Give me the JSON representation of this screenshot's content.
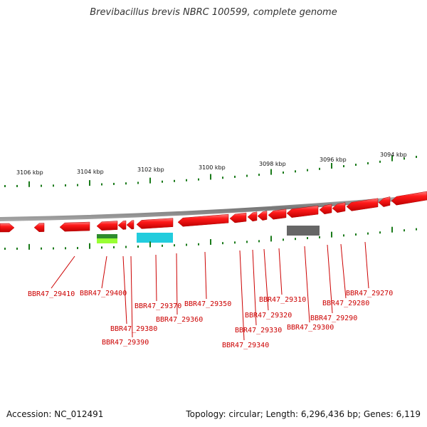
{
  "title": "Brevibacillus brevis NBRC 100599, complete genome",
  "footer": {
    "accession": "Accession: NC_012491",
    "topology": "Topology: circular; Length: 6,296,436 bp; Genes: 6,119"
  },
  "scale_labels": [
    "3106 kbp",
    "3104 kbp",
    "3102 kbp",
    "3100 kbp",
    "3098 kbp",
    "3096 kbp",
    "3094 kbp"
  ],
  "gene_labels": [
    "BBR47_29410",
    "BBR47_29400",
    "BBR47_29380",
    "BBR47_29390",
    "BBR47_29370",
    "BBR47_29360",
    "BBR47_29350",
    "BBR47_29340",
    "BBR47_29330",
    "BBR47_29320",
    "BBR47_29310",
    "BBR47_29300",
    "BBR47_29290",
    "BBR47_29280",
    "BBR47_29270"
  ],
  "colors": {
    "gene": "#ff0000",
    "gene_dark": "#cc0000",
    "label": "#cc0000",
    "tick": "#1a7a1a",
    "backbone": "#888888",
    "cyan_feature": "#22ccdd",
    "green_feature": "#2e8b2e",
    "lime_feature": "#99ff33",
    "gray_feature": "#666666"
  }
}
